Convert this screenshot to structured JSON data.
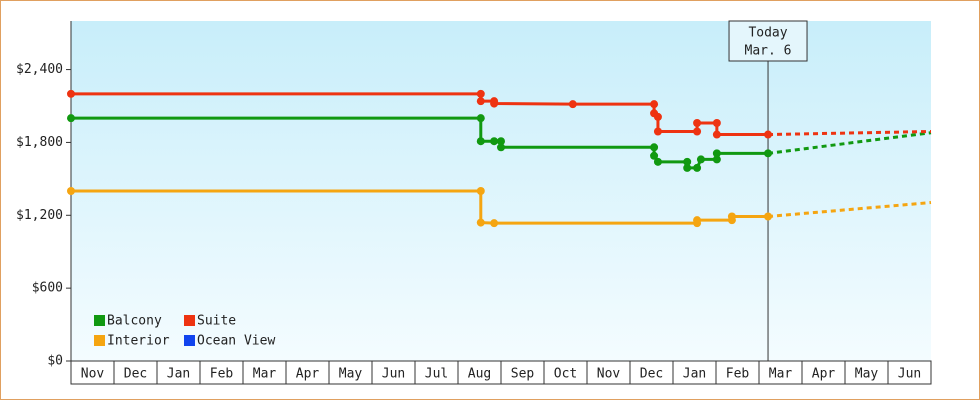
{
  "chart_data": {
    "type": "line",
    "categories": [
      "Nov",
      "Dec",
      "Jan",
      "Feb",
      "Mar",
      "Apr",
      "May",
      "Jun",
      "Jul",
      "Aug",
      "Sep",
      "Oct",
      "Nov",
      "Dec",
      "Jan",
      "Feb",
      "Mar",
      "Apr",
      "May",
      "Jun"
    ],
    "xlim": [
      0,
      20
    ],
    "ylim": [
      0,
      2800
    ],
    "yticks": [
      {
        "value": 0,
        "label": "$0"
      },
      {
        "value": 600,
        "label": "$600"
      },
      {
        "value": 1200,
        "label": "$1,200"
      },
      {
        "value": 1800,
        "label": "$1,800"
      },
      {
        "value": 2400,
        "label": "$2,400"
      }
    ],
    "today": {
      "x": 16.21,
      "label": [
        "Today",
        "Mar. 6"
      ]
    },
    "series": [
      {
        "name": "Balcony",
        "color": "#119911",
        "x": [
          0,
          9.53,
          9.53,
          9.84,
          10.0,
          10.0,
          13.56,
          13.56,
          13.65,
          14.33,
          14.33,
          14.56,
          14.65,
          15.02,
          15.02,
          16.21,
          20
        ],
        "values": [
          2000,
          2000,
          1810,
          1810,
          1810,
          1760,
          1760,
          1690,
          1640,
          1640,
          1590,
          1590,
          1660,
          1660,
          1710,
          1710,
          1880
        ]
      },
      {
        "name": "Suite",
        "color": "#ee3311",
        "x": [
          0,
          9.53,
          9.53,
          9.84,
          9.84,
          11.67,
          13.56,
          13.56,
          13.65,
          13.65,
          14.56,
          14.56,
          15.02,
          15.02,
          16.21,
          20
        ],
        "values": [
          2200,
          2200,
          2140,
          2140,
          2120,
          2115,
          2115,
          2040,
          2010,
          1890,
          1890,
          1960,
          1960,
          1865,
          1865,
          1890
        ]
      },
      {
        "name": "Interior",
        "color": "#f5a511",
        "x": [
          0,
          9.53,
          9.53,
          9.84,
          14.56,
          14.56,
          15.37,
          15.37,
          16.21,
          20
        ],
        "values": [
          1400,
          1400,
          1140,
          1135,
          1135,
          1160,
          1160,
          1190,
          1190,
          1305
        ]
      },
      {
        "name": "Ocean View",
        "color": "#1144ee",
        "x": [],
        "values": []
      }
    ]
  }
}
